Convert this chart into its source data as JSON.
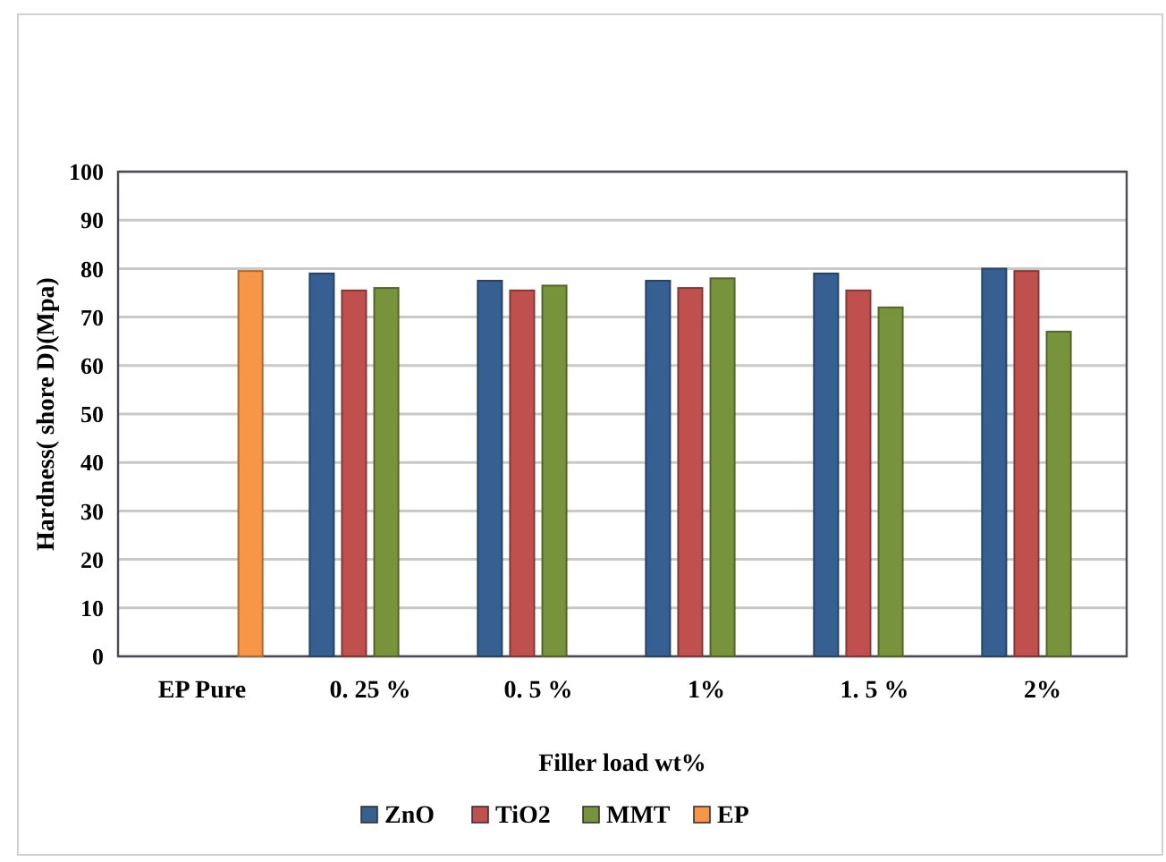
{
  "chart_data": {
    "type": "bar",
    "xlabel": "Filler load wt%",
    "ylabel": "Hardness( shore D)(Mpa)",
    "categories": [
      "EP Pure",
      "0. 25 %",
      "0. 5 %",
      "1%",
      "1. 5 %",
      "2%"
    ],
    "series": [
      {
        "name": "ZnO",
        "color": "#366092",
        "values": [
          null,
          79,
          77.5,
          77.5,
          79,
          80
        ]
      },
      {
        "name": "TiO2",
        "color": "#c0504d",
        "values": [
          null,
          75.5,
          75.5,
          76,
          75.5,
          79.5
        ]
      },
      {
        "name": "MMT",
        "color": "#77933c",
        "values": [
          null,
          76,
          76.5,
          78,
          72,
          67
        ]
      },
      {
        "name": "EP",
        "color": "#f79646",
        "values": [
          79.5,
          null,
          null,
          null,
          null,
          null
        ]
      }
    ],
    "ylim": [
      0,
      100
    ],
    "yticks": [
      0,
      10,
      20,
      30,
      40,
      50,
      60,
      70,
      80,
      90,
      100
    ],
    "grid": "y",
    "legend": "bottom"
  }
}
